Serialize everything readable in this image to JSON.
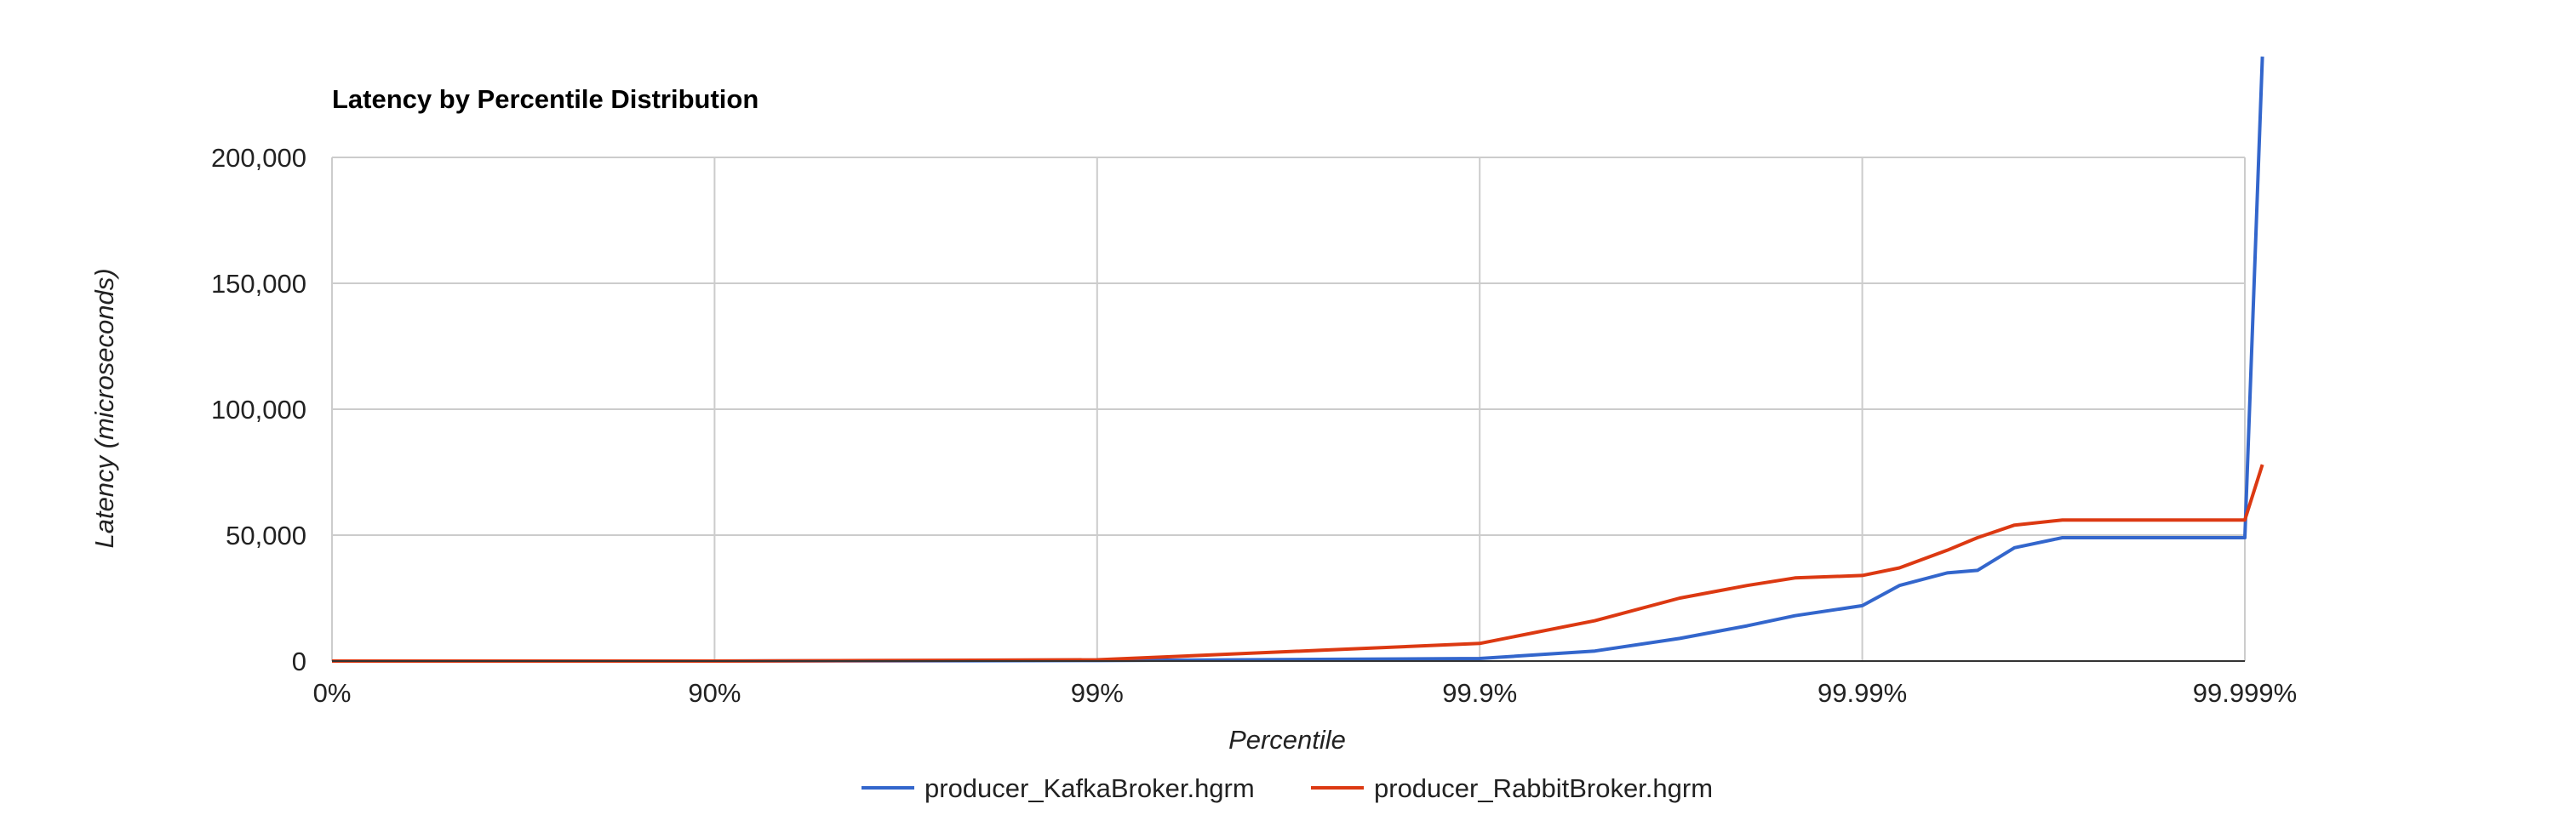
{
  "chart_data": {
    "type": "line",
    "title": "Latency by Percentile Distribution",
    "xlabel": "Percentile",
    "ylabel": "Latency (microseconds)",
    "x_scale": "percentile-log (nines)",
    "x_ticks": [
      "0%",
      "90%",
      "99%",
      "99.9%",
      "99.99%",
      "99.999%"
    ],
    "y_ticks": [
      "0",
      "50,000",
      "100,000",
      "150,000",
      "200,000"
    ],
    "ylim": [
      0,
      200000
    ],
    "grid": true,
    "legend_position": "bottom",
    "series": [
      {
        "name": "producer_KafkaBroker.hgrm",
        "color": "#3366cc",
        "points": [
          {
            "x": "0%",
            "y": 0
          },
          {
            "x": "90%",
            "y": 0
          },
          {
            "x": "99%",
            "y": 200
          },
          {
            "x": "99.9%",
            "y": 1000
          },
          {
            "x": "99.95%",
            "y": 4000
          },
          {
            "x": "99.97%",
            "y": 9000
          },
          {
            "x": "99.98%",
            "y": 14000
          },
          {
            "x": "99.985%",
            "y": 18000
          },
          {
            "x": "99.99%",
            "y": 22000
          },
          {
            "x": "99.992%",
            "y": 30000
          },
          {
            "x": "99.994%",
            "y": 35000
          },
          {
            "x": "99.995%",
            "y": 36000
          },
          {
            "x": "99.996%",
            "y": 45000
          },
          {
            "x": "99.997%",
            "y": 49000
          },
          {
            "x": "99.998%",
            "y": 49000
          },
          {
            "x": "99.999%",
            "y": 49000
          },
          {
            "x": "99.9991%",
            "y": 240000
          }
        ]
      },
      {
        "name": "producer_RabbitBroker.hgrm",
        "color": "#dc3912",
        "points": [
          {
            "x": "0%",
            "y": 0
          },
          {
            "x": "90%",
            "y": 0
          },
          {
            "x": "99%",
            "y": 500
          },
          {
            "x": "99.9%",
            "y": 7000
          },
          {
            "x": "99.95%",
            "y": 16000
          },
          {
            "x": "99.97%",
            "y": 25000
          },
          {
            "x": "99.98%",
            "y": 30000
          },
          {
            "x": "99.985%",
            "y": 33000
          },
          {
            "x": "99.99%",
            "y": 34000
          },
          {
            "x": "99.992%",
            "y": 37000
          },
          {
            "x": "99.994%",
            "y": 44000
          },
          {
            "x": "99.995%",
            "y": 49000
          },
          {
            "x": "99.996%",
            "y": 54000
          },
          {
            "x": "99.997%",
            "y": 56000
          },
          {
            "x": "99.998%",
            "y": 56000
          },
          {
            "x": "99.999%",
            "y": 56000
          },
          {
            "x": "99.9991%",
            "y": 78000
          }
        ]
      }
    ]
  }
}
